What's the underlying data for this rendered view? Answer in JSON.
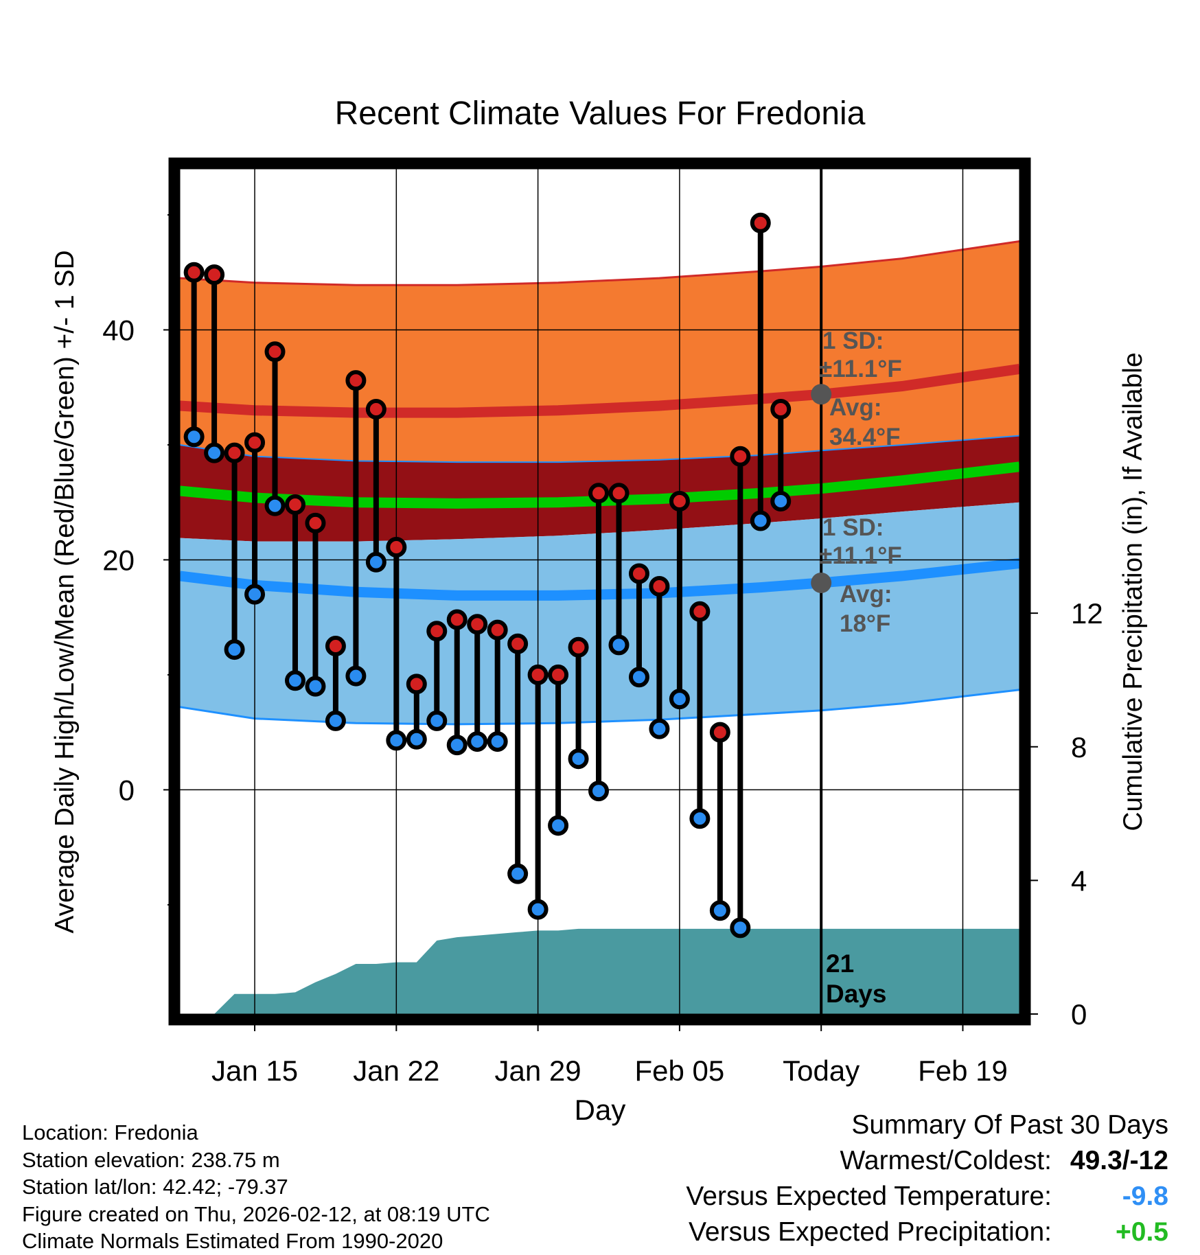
{
  "title": "Recent Climate Values For Fredonia",
  "chart_data": {
    "type": "bar",
    "title": "Recent Climate Values For Fredonia",
    "xlabel": "Day",
    "ylabel": "Average Daily High/Low/Mean (Red/Blue/Green) +/- 1 SD",
    "y2label": "Cumulative Precipitation (in), If Available",
    "ylim": [
      -19.5,
      54
    ],
    "y2lim": [
      0,
      25.3
    ],
    "yticks": [
      0,
      20,
      40
    ],
    "yticks_minor": [
      -10,
      10,
      30,
      50
    ],
    "y2ticks": [
      0,
      4,
      8,
      12
    ],
    "xlim": [
      11.3,
      52.8
    ],
    "xticks": [
      {
        "day": 15,
        "label": "Jan 15"
      },
      {
        "day": 22,
        "label": "Jan 22"
      },
      {
        "day": 29,
        "label": "Jan 29"
      },
      {
        "day": 36,
        "label": "Feb 05"
      },
      {
        "day": 43,
        "label": "Today"
      },
      {
        "day": 50,
        "label": "Feb 19"
      }
    ],
    "today_day": 43,
    "period_label": "21 Days",
    "observed": [
      {
        "day": 12,
        "high": 45,
        "low": 30.7
      },
      {
        "day": 13,
        "high": 44.8,
        "low": 29.3
      },
      {
        "day": 14,
        "high": 29.3,
        "low": 12.2
      },
      {
        "day": 15,
        "high": 30.2,
        "low": 17.0
      },
      {
        "day": 16,
        "high": 38.1,
        "low": 24.7
      },
      {
        "day": 17,
        "high": 24.8,
        "low": 9.5
      },
      {
        "day": 18,
        "high": 23.2,
        "low": 9.0
      },
      {
        "day": 19,
        "high": 12.5,
        "low": 6.0
      },
      {
        "day": 20,
        "high": 35.6,
        "low": 9.9
      },
      {
        "day": 21,
        "high": 33.1,
        "low": 19.8
      },
      {
        "day": 22,
        "high": 21.1,
        "low": 4.3
      },
      {
        "day": 23,
        "high": 9.2,
        "low": 4.4
      },
      {
        "day": 24,
        "high": 13.8,
        "low": 6.0
      },
      {
        "day": 25,
        "high": 14.8,
        "low": 3.9
      },
      {
        "day": 26,
        "high": 14.4,
        "low": 4.2
      },
      {
        "day": 27,
        "high": 13.9,
        "low": 4.2
      },
      {
        "day": 28,
        "high": 12.7,
        "low": -7.3
      },
      {
        "day": 29,
        "high": 10.0,
        "low": -10.4
      },
      {
        "day": 30,
        "high": 10.0,
        "low": -3.1
      },
      {
        "day": 31,
        "high": 12.4,
        "low": 2.7
      },
      {
        "day": 32,
        "high": 25.8,
        "low": -0.1
      },
      {
        "day": 33,
        "high": 25.8,
        "low": 12.6
      },
      {
        "day": 34,
        "high": 18.8,
        "low": 9.8
      },
      {
        "day": 35,
        "high": 17.7,
        "low": 5.3
      },
      {
        "day": 36,
        "high": 25.1,
        "low": 7.9
      },
      {
        "day": 37,
        "high": 15.5,
        "low": -2.5
      },
      {
        "day": 38,
        "high": 5.0,
        "low": -10.5
      },
      {
        "day": 39,
        "high": 29.0,
        "low": -12.0
      },
      {
        "day": 40,
        "high": 49.3,
        "low": 23.4
      },
      {
        "day": 41,
        "high": 33.1,
        "low": 25.1
      }
    ],
    "normals": {
      "day": [
        11.3,
        15,
        20,
        25,
        30,
        35,
        40,
        43,
        47,
        52.8
      ],
      "high_mean": [
        33.4,
        33.0,
        32.8,
        32.8,
        33.0,
        33.4,
        34.0,
        34.4,
        35.1,
        36.6
      ],
      "low_mean": [
        18.6,
        17.8,
        17.2,
        16.9,
        16.9,
        17.1,
        17.6,
        18.0,
        18.6,
        19.7
      ],
      "mean": [
        26.0,
        25.4,
        25.0,
        24.9,
        25.0,
        25.3,
        25.8,
        26.2,
        26.9,
        28.1
      ],
      "high_plus_sd": [
        44.5,
        44.1,
        43.9,
        43.9,
        44.1,
        44.5,
        45.1,
        45.5,
        46.2,
        47.7
      ],
      "high_minus_sd": [
        30.0,
        29.0,
        28.6,
        28.5,
        28.5,
        28.7,
        29.1,
        29.5,
        30.0,
        30.8
      ],
      "low_plus_sd": [
        21.9,
        21.6,
        21.6,
        21.8,
        22.1,
        22.6,
        23.2,
        23.6,
        24.2,
        25.0
      ],
      "low_minus_sd": [
        7.2,
        6.2,
        5.8,
        5.7,
        5.8,
        6.1,
        6.6,
        6.9,
        7.5,
        8.7
      ]
    },
    "precip_cumulative": {
      "day": [
        13,
        14,
        15,
        16,
        17,
        18,
        19,
        20,
        21,
        22,
        23,
        24,
        25,
        26,
        27,
        28,
        29,
        30,
        31,
        52.8
      ],
      "value": [
        0,
        0.6,
        0.6,
        0.6,
        0.65,
        0.95,
        1.2,
        1.5,
        1.5,
        1.55,
        1.55,
        2.2,
        2.3,
        2.35,
        2.4,
        2.45,
        2.5,
        2.5,
        2.55,
        2.55
      ]
    },
    "annotations": {
      "high_sd_label": "1 SD:",
      "high_sd_value": "±11.1°F",
      "high_avg_label": "Avg:",
      "high_avg_value": "34.4°F",
      "low_sd_label": "1 SD:",
      "low_sd_value": "±11.1°F",
      "low_avg_label": "Avg:",
      "low_avg_value": "18°F"
    }
  },
  "meta": {
    "location": "Location: Fredonia",
    "elevation": "Station elevation: 238.75 m",
    "latlon": "Station lat/lon: 42.42; -79.37",
    "created": "Figure created on Thu, 2026-02-12, at 08:19 UTC",
    "normals": "Climate Normals Estimated From 1990-2020"
  },
  "summary": {
    "heading": "Summary Of Past 30 Days",
    "warm_cold_label": "Warmest/Coldest:",
    "warm_cold_value": "49.3/-12",
    "temp_label": "Versus Expected Temperature:",
    "temp_value": "-9.8",
    "temp_color": "#2f8ff5",
    "precip_label": "Versus Expected Precipitation:",
    "precip_value": "+0.5",
    "precip_color": "#22bb22"
  },
  "colors": {
    "high_band": "#f47a30",
    "overlap_band": "#931015",
    "low_band": "#80c0e8",
    "high_line": "#d02a28",
    "low_line": "#1e90ff",
    "mean_line": "#00cc00",
    "precip": "#4a9aa0",
    "high_dot": "#d32020",
    "low_dot": "#2a8cf0",
    "avg_marker": "#555555"
  }
}
